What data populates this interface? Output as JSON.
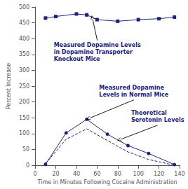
{
  "chart_data": {
    "type": "line",
    "xlabel": "Time in Minutes Following Cocaine Administration",
    "ylabel": "Percent Increase",
    "xlim": [
      0,
      140
    ],
    "ylim": [
      0,
      500
    ],
    "xticks": [
      0,
      20,
      40,
      60,
      80,
      100,
      120,
      140
    ],
    "yticks": [
      0,
      50,
      100,
      150,
      200,
      250,
      300,
      350,
      400,
      450,
      500
    ],
    "grid": false,
    "series": [
      {
        "x": [
          10,
          20,
          40,
          50,
          60,
          80,
          100,
          120,
          135
        ],
        "values": [
          465,
          470,
          478,
          475,
          460,
          455,
          460,
          463,
          468
        ],
        "color": "#1a237e",
        "marker": "square",
        "line_style": "solid"
      },
      {
        "x": [
          10,
          30,
          50,
          70,
          90,
          110,
          135
        ],
        "values": [
          3,
          102,
          145,
          98,
          62,
          37,
          2
        ],
        "color": "#1a237e",
        "marker": "circle",
        "line_style": "solid"
      },
      {
        "x": [
          10,
          30,
          50,
          70,
          90,
          110,
          135
        ],
        "values": [
          5,
          82,
          115,
          78,
          42,
          18,
          0
        ],
        "color": "#1a237e",
        "marker": "none",
        "line_style": "dashed"
      }
    ],
    "annotations": [
      {
        "text": "Measured Dopamine Levels\nin Dopamine Transporter\nKnockout Mice",
        "x": 55,
        "y": 472,
        "text_x": 18,
        "text_y": 390,
        "color": "#1a237e"
      },
      {
        "text": "Measured Dopamine\nLevels in Normal Mice",
        "x": 50,
        "y": 145,
        "text_x": 62,
        "text_y": 255,
        "color": "#1a237e"
      },
      {
        "text": "Theoretical\nSerotonin Levels",
        "x": 80,
        "y": 78,
        "text_x": 93,
        "text_y": 175,
        "color": "#1a237e"
      }
    ]
  }
}
